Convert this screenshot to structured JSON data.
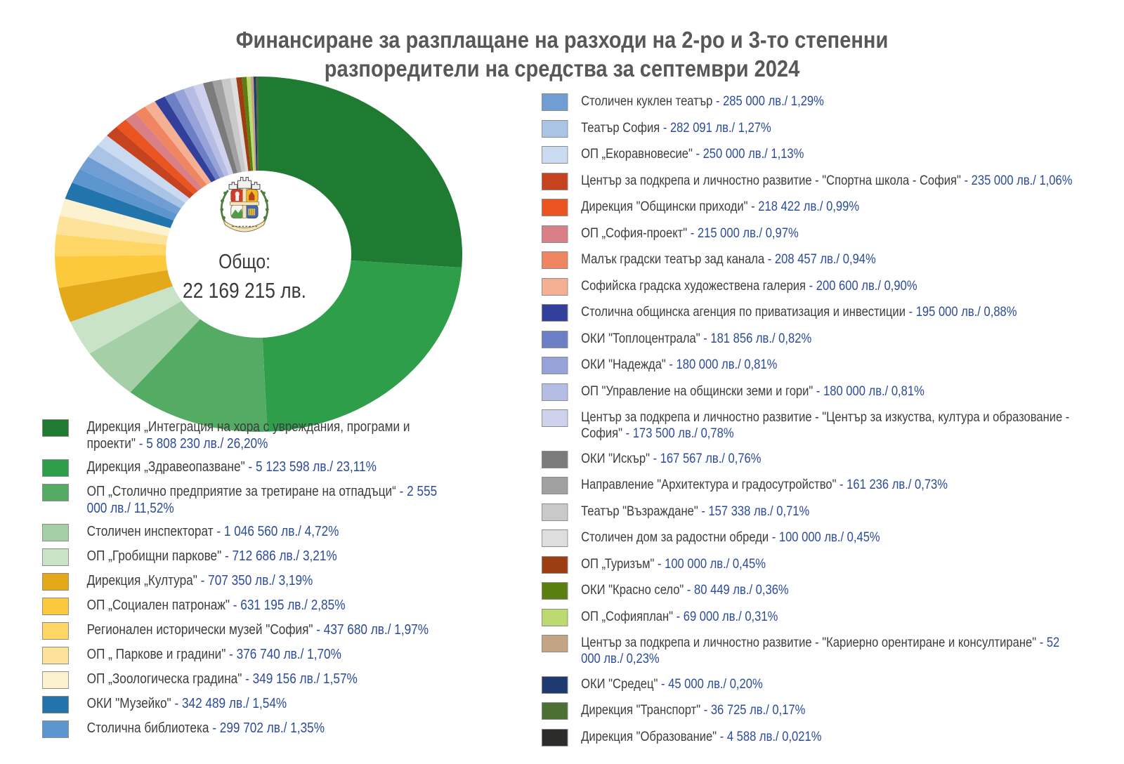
{
  "title": {
    "line1": "Финансиране за разплащане на разходи на 2-ро и 3-то степенни",
    "line2": "разпоредители на средства за септември 2024"
  },
  "center": {
    "label": "Общо:",
    "total": "22 169 215 лв."
  },
  "chart_data": {
    "type": "pie",
    "title": "Финансиране за разплащане на разходи на 2-ро и 3-то степенни разпоредители на средства за септември 2024",
    "total_value": 22169215,
    "total_display": "Общо: 22 169 215 лв.",
    "unit": "лв.",
    "start_angle_deg": 0,
    "direction": "clockwise",
    "legend_position": "bottom-left and right column",
    "slices": [
      {
        "label": "Дирекция „Интеграция на хора с увреждания, програми и проекти\"",
        "value": 5808230,
        "percent": 26.2,
        "display": "- 5 808 230 лв./ 26,20%",
        "color": "#1f7b31",
        "column": "left"
      },
      {
        "label": "Дирекция „Здравеопазване\"",
        "value": 5123598,
        "percent": 23.11,
        "display": "- 5 123 598 лв./ 23,11%",
        "color": "#2f9e4b",
        "column": "left"
      },
      {
        "label": "ОП „Столично предприятие за третиране на отпадъци“",
        "value": 2555000,
        "percent": 11.52,
        "display": "- 2 555 000 лв./ 11,52%",
        "color": "#54ab64",
        "column": "left"
      },
      {
        "label": "Столичен инспекторат",
        "value": 1046560,
        "percent": 4.72,
        "display": "- 1 046 560 лв./ 4,72%",
        "color": "#a5cfa6",
        "column": "left"
      },
      {
        "label": "ОП „Гробищни паркове\"",
        "value": 712686,
        "percent": 3.21,
        "display": "- 712 686 лв./ 3,21%",
        "color": "#c9e3c9",
        "column": "left"
      },
      {
        "label": "Дирекция „Култура\"",
        "value": 707350,
        "percent": 3.19,
        "display": "- 707 350 лв./ 3,19%",
        "color": "#e4a91b",
        "column": "left"
      },
      {
        "label": "ОП „Социален патронаж\"",
        "value": 631195,
        "percent": 2.85,
        "display": "- 631 195 лв./ 2,85%",
        "color": "#fbc93b",
        "column": "left"
      },
      {
        "label": "Регионален исторически музей \"София\"",
        "value": 437680,
        "percent": 1.97,
        "display": "- 437 680 лв./ 1,97%",
        "color": "#fdd666",
        "column": "left"
      },
      {
        "label": "ОП „ Паркове и градини\"",
        "value": 376740,
        "percent": 1.7,
        "display": "- 376 740 лв./ 1,70%",
        "color": "#fde29a",
        "column": "left"
      },
      {
        "label": "ОП „Зоологическа градина\"",
        "value": 349156,
        "percent": 1.57,
        "display": "- 349 156 лв./ 1,57%",
        "color": "#fdf2cf",
        "column": "left"
      },
      {
        "label": "ОКИ \"Музейко\"",
        "value": 342489,
        "percent": 1.54,
        "display": "- 342 489 лв./ 1,54%",
        "color": "#2274ac",
        "column": "left"
      },
      {
        "label": "Столична библиотека",
        "value": 299702,
        "percent": 1.35,
        "display": "- 299 702 лв./ 1,35%",
        "color": "#5d95cf",
        "column": "left"
      },
      {
        "label": "Столичен куклен театър",
        "value": 285000,
        "percent": 1.29,
        "display": "- 285 000 лв./ 1,29%",
        "color": "#6f9dd4",
        "column": "right"
      },
      {
        "label": "Театър София",
        "value": 282091,
        "percent": 1.27,
        "display": "- 282 091 лв./ 1,27%",
        "color": "#aac4e6",
        "column": "right"
      },
      {
        "label": "ОП „Екоравновесие\"",
        "value": 250000,
        "percent": 1.13,
        "display": "- 250 000 лв./ 1,13%",
        "color": "#c9daf1",
        "column": "right"
      },
      {
        "label": "Център за подкрепа и личностно развитие - \"Спортна школа - София\"",
        "value": 235000,
        "percent": 1.06,
        "display": "- 235 000 лв./ 1,06%",
        "color": "#c5431f",
        "column": "right"
      },
      {
        "label": "Дирекция \"Общински приходи\"",
        "value": 218422,
        "percent": 0.99,
        "display": "- 218 422 лв./ 0,99%",
        "color": "#ea5420",
        "column": "right"
      },
      {
        "label": "ОП „София-проект\"",
        "value": 215000,
        "percent": 0.97,
        "display": "- 215 000 лв./ 0,97%",
        "color": "#d88085",
        "column": "right"
      },
      {
        "label": "Малък градски театър зад канала",
        "value": 208457,
        "percent": 0.94,
        "display": "- 208 457 лв./ 0,94%",
        "color": "#ef8661",
        "column": "right"
      },
      {
        "label": "Софийска градска художествена галерия",
        "value": 200600,
        "percent": 0.9,
        "display": "- 200 600 лв./ 0,90%",
        "color": "#f5b093",
        "column": "right"
      },
      {
        "label": "Столична общинска агенция по приватизация и инвестиции",
        "value": 195000,
        "percent": 0.88,
        "display": "- 195 000 лв./ 0,88%",
        "color": "#32409b",
        "column": "right"
      },
      {
        "label": "ОКИ \"Топлоцентрала\"",
        "value": 181856,
        "percent": 0.82,
        "display": "- 181 856 лв./ 0,82%",
        "color": "#6c7ec4",
        "column": "right"
      },
      {
        "label": "ОКИ \"Надежда\"",
        "value": 180000,
        "percent": 0.81,
        "display": "- 180 000 лв./ 0,81%",
        "color": "#97a3d8",
        "column": "right"
      },
      {
        "label": "ОП \"Управление на общински земи и гори\"",
        "value": 180000,
        "percent": 0.81,
        "display": "- 180 000 лв./ 0,81%",
        "color": "#b6bde5",
        "column": "right"
      },
      {
        "label": "Център за подкрепа и личностно развитие - \"Център за изкуства, култура и образование - София\"",
        "value": 173500,
        "percent": 0.78,
        "display": "- 173 500 лв./ 0,78%",
        "color": "#ced2ed",
        "column": "right"
      },
      {
        "label": "ОКИ \"Искър\"",
        "value": 167567,
        "percent": 0.76,
        "display": "- 167 567 лв./ 0,76%",
        "color": "#7b7b7b",
        "column": "right"
      },
      {
        "label": "Направление \"Архитектура и градосутройство\"",
        "value": 161236,
        "percent": 0.73,
        "display": "- 161 236 лв./ 0,73%",
        "color": "#a1a1a1",
        "column": "right"
      },
      {
        "label": "Театър \"Възраждане\"",
        "value": 157338,
        "percent": 0.71,
        "display": "- 157 338 лв./ 0,71%",
        "color": "#c9c9c9",
        "column": "right"
      },
      {
        "label": "Столичен дом за радостни обреди",
        "value": 100000,
        "percent": 0.45,
        "display": "- 100 000 лв./ 0,45%",
        "color": "#dedede",
        "column": "right"
      },
      {
        "label": "ОП „Туризъм\"",
        "value": 100000,
        "percent": 0.45,
        "display": "- 100 000 лв./ 0,45%",
        "color": "#9c3d12",
        "column": "right"
      },
      {
        "label": "ОКИ \"Красно село\"",
        "value": 80449,
        "percent": 0.36,
        "display": "- 80 449 лв./ 0,36%",
        "color": "#5a7e10",
        "column": "right"
      },
      {
        "label": "ОП „Софияплан\"",
        "value": 69000,
        "percent": 0.31,
        "display": "- 69 000 лв./ 0,31%",
        "color": "#bbdb70",
        "column": "right"
      },
      {
        "label": "Център за подкрепа и личностно развитие - \"Кариерно орентиране и консултиране\"",
        "value": 52000,
        "percent": 0.23,
        "display": "- 52 000 лв./ 0,23%",
        "color": "#c3a485",
        "column": "right"
      },
      {
        "label": "ОКИ \"Средец\"",
        "value": 45000,
        "percent": 0.2,
        "display": "- 45 000 лв./ 0,20%",
        "color": "#1f3a70",
        "column": "right"
      },
      {
        "label": "Дирекция \"Транспорт\"",
        "value": 36725,
        "percent": 0.17,
        "display": "- 36 725 лв./ 0,17%",
        "color": "#4c7034",
        "column": "right"
      },
      {
        "label": "Дирекция \"Образование\"",
        "value": 4588,
        "percent": 0.021,
        "display": "- 4 588 лв./ 0,021%",
        "color": "#2c2c2a",
        "column": "right"
      }
    ]
  }
}
